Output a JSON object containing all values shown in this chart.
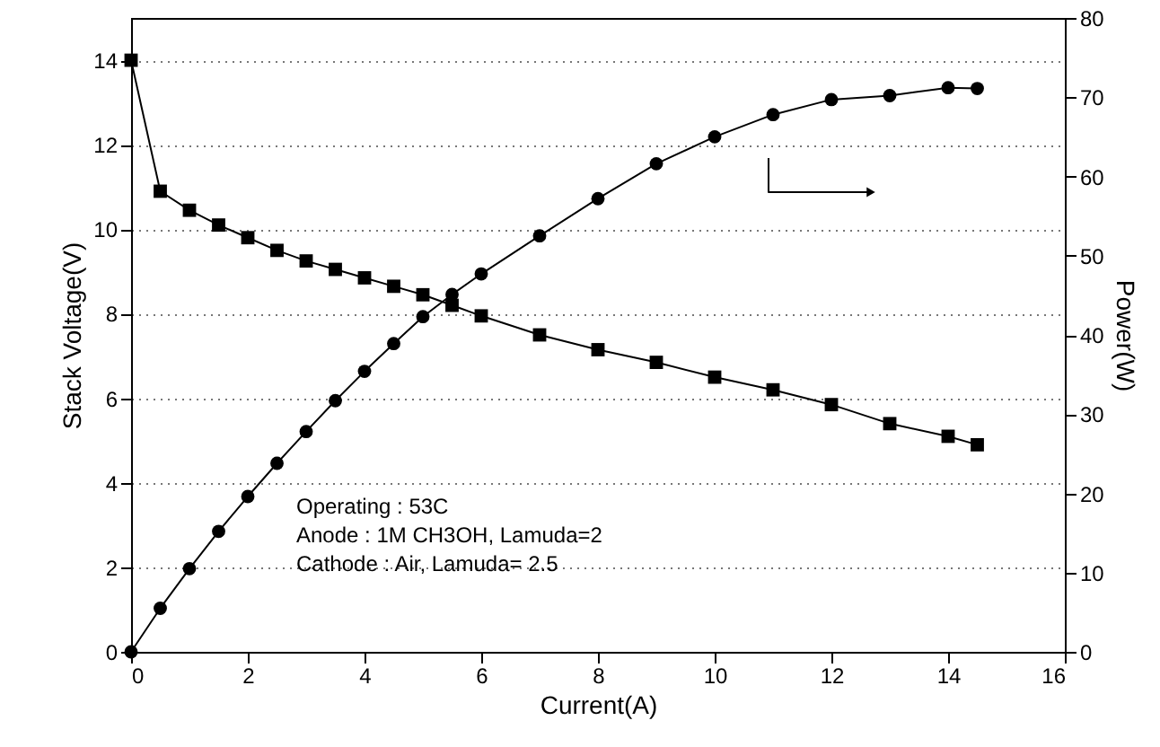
{
  "chart_data": {
    "type": "line",
    "xlabel": "Current(A)",
    "ylabel": "Stack Voltage(V)",
    "y2label": "Power(W)",
    "x": [
      0,
      0.5,
      1,
      1.5,
      2,
      2.5,
      3,
      3.5,
      4,
      4.5,
      5,
      5.5,
      6,
      7,
      8,
      9,
      10,
      11,
      12,
      13,
      14,
      14.5
    ],
    "series": [
      {
        "color": "#000000",
        "marker": "square",
        "values": [
          14.0,
          10.9,
          10.45,
          10.1,
          9.8,
          9.5,
          9.25,
          9.05,
          8.85,
          8.65,
          8.45,
          8.2,
          7.95,
          7.5,
          7.15,
          6.85,
          6.5,
          6.2,
          5.85,
          5.4,
          5.1,
          4.9
        ]
      },
      {
        "color": "#000000",
        "marker": "circle",
        "axis": "y2",
        "values": [
          0,
          5.5,
          10.5,
          15.2,
          19.6,
          23.8,
          27.8,
          31.7,
          35.4,
          38.9,
          42.3,
          45.1,
          47.7,
          52.5,
          57.2,
          61.6,
          65,
          67.8,
          69.7,
          70.2,
          71.2,
          71.1
        ]
      }
    ],
    "xlim": [
      0,
      16
    ],
    "xticks": [
      0,
      2,
      4,
      6,
      8,
      10,
      12,
      14,
      16
    ],
    "ylim": [
      0,
      15
    ],
    "yticks": [
      0,
      2,
      4,
      6,
      8,
      10,
      12,
      14
    ],
    "y2lim": [
      0,
      80
    ],
    "y2ticks": [
      0,
      10,
      20,
      30,
      40,
      50,
      60,
      70,
      80
    ],
    "grid": "y",
    "line_style": "solid",
    "annotations": [
      "Operating : 53C",
      "Anode : 1M CH3OH, Lamuda=2",
      "Cathode : Air, Lamuda= 2.5"
    ]
  }
}
